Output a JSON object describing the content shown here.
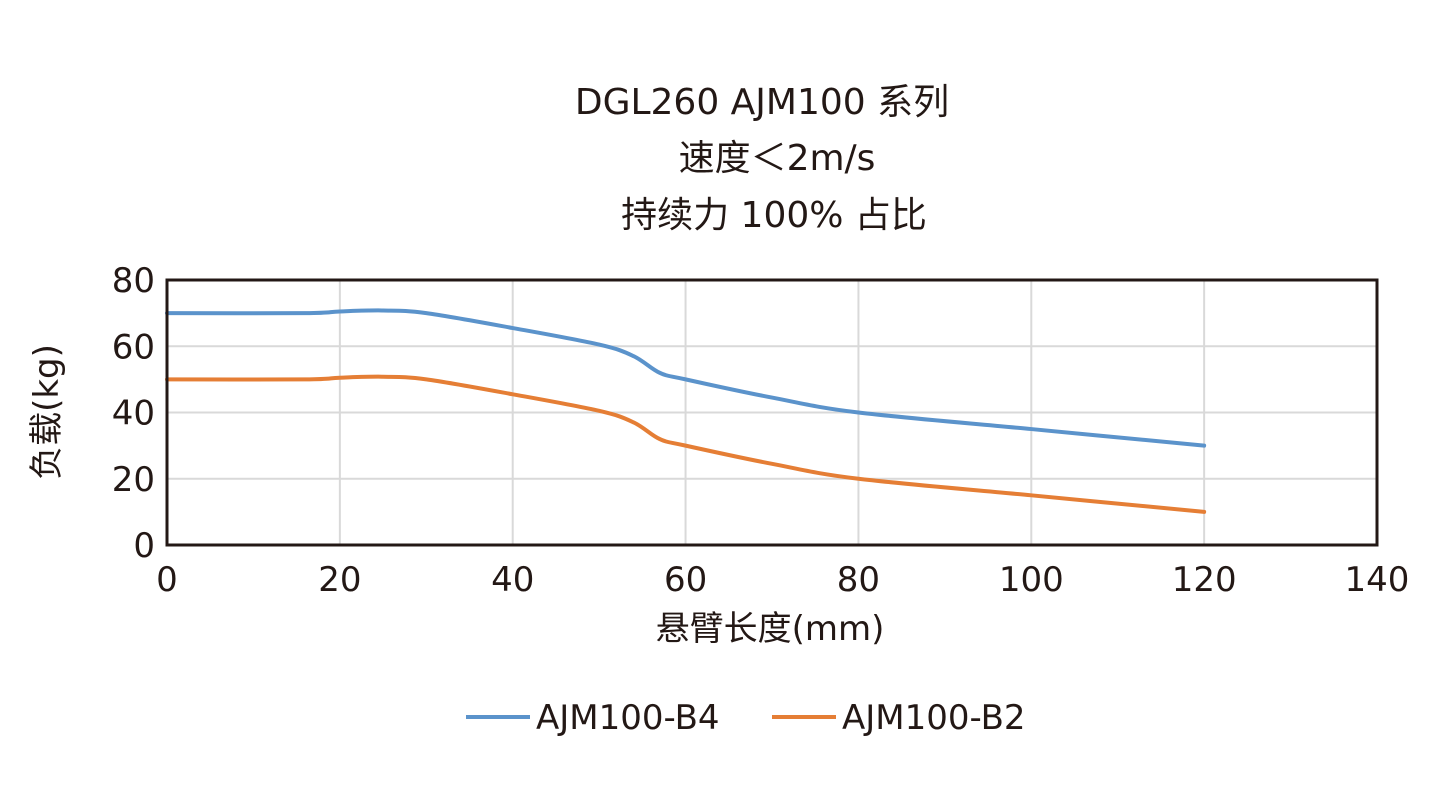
{
  "chart_data": {
    "type": "line",
    "title_lines": [
      "DGL260 AJM100 系列",
      "速度＜2m/s",
      "持续力 100% 占比"
    ],
    "xlabel": "悬臂长度(mm)",
    "ylabel": "负载(kg)",
    "xlim": [
      0,
      140
    ],
    "ylim": [
      0,
      80
    ],
    "xticks": [
      0,
      20,
      40,
      60,
      80,
      100,
      120,
      140
    ],
    "yticks": [
      0,
      20,
      40,
      60,
      80
    ],
    "grid": true,
    "legend_placement": "bottom",
    "series": [
      {
        "name": "AJM100-B4",
        "color": "#5b93cb",
        "x": [
          0,
          16,
          20,
          25,
          30,
          40,
          50,
          54,
          57,
          60,
          70,
          80,
          100,
          120
        ],
        "y": [
          70,
          70,
          70.5,
          70.8,
          70,
          65.5,
          60.5,
          57,
          52,
          50,
          44.5,
          40,
          35,
          30
        ]
      },
      {
        "name": "AJM100-B2",
        "color": "#e57e35",
        "x": [
          0,
          16,
          20,
          25,
          30,
          40,
          50,
          54,
          57,
          60,
          70,
          80,
          100,
          120
        ],
        "y": [
          50,
          50,
          50.5,
          50.8,
          50,
          45.5,
          40.5,
          37,
          32,
          30,
          24.5,
          20,
          15,
          10
        ]
      }
    ]
  }
}
